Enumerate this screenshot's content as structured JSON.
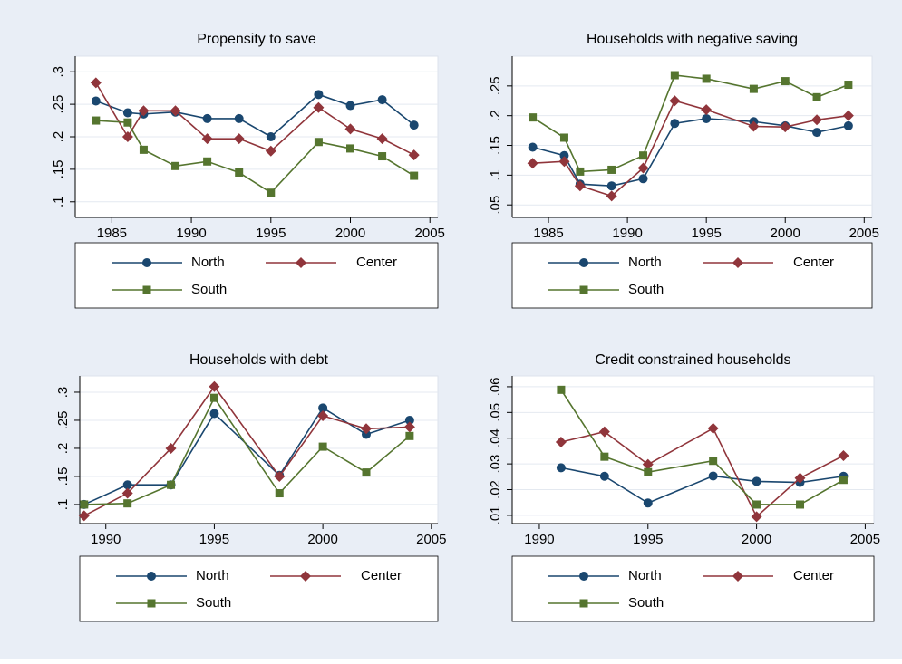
{
  "chart_data": [
    {
      "type": "line",
      "title": "Propensity to save",
      "x": [
        1984,
        1986,
        1987,
        1989,
        1991,
        1993,
        1995,
        1998,
        2000,
        2002,
        2004
      ],
      "xlim": [
        1982.7,
        2005.5
      ],
      "xticks": [
        1985,
        1990,
        1995,
        2000,
        2005
      ],
      "ylim": [
        0.076,
        0.324
      ],
      "yticks": [
        {
          "value": 0.1,
          "label": ".1"
        },
        {
          "value": 0.15,
          "label": ".15"
        },
        {
          "value": 0.2,
          "label": ".2"
        },
        {
          "value": 0.25,
          "label": ".25"
        },
        {
          "value": 0.3,
          "label": ".3"
        }
      ],
      "grid": true,
      "series": [
        {
          "name": "North",
          "color": "#1a476f",
          "marker": "circle",
          "values": [
            0.255,
            0.237,
            0.235,
            0.238,
            0.228,
            0.228,
            0.2,
            0.265,
            0.248,
            0.257,
            0.218
          ]
        },
        {
          "name": "Center",
          "color": "#90353b",
          "marker": "diamond",
          "values": [
            0.283,
            0.2,
            0.24,
            0.24,
            0.197,
            0.197,
            0.178,
            0.245,
            0.212,
            0.197,
            0.172
          ]
        },
        {
          "name": "South",
          "color": "#55752f",
          "marker": "square",
          "values": [
            0.225,
            0.222,
            0.18,
            0.155,
            0.162,
            0.145,
            0.114,
            0.192,
            0.182,
            0.17,
            0.14
          ]
        }
      ]
    },
    {
      "type": "line",
      "title": "Households with negative saving",
      "x": [
        1984,
        1986,
        1987,
        1989,
        1991,
        1993,
        1995,
        1998,
        2000,
        2002,
        2004
      ],
      "xlim": [
        1982.7,
        2005.5
      ],
      "xticks": [
        1985,
        1990,
        1995,
        2000,
        2005
      ],
      "ylim": [
        0.029,
        0.3
      ],
      "yticks": [
        {
          "value": 0.05,
          "label": ".05"
        },
        {
          "value": 0.1,
          "label": ".1"
        },
        {
          "value": 0.15,
          "label": ".15"
        },
        {
          "value": 0.2,
          "label": ".2"
        },
        {
          "value": 0.25,
          "label": ".25"
        }
      ],
      "grid": true,
      "series": [
        {
          "name": "North",
          "color": "#1a476f",
          "marker": "circle",
          "values": [
            0.147,
            0.133,
            0.085,
            0.082,
            0.094,
            0.187,
            0.195,
            0.19,
            0.183,
            0.172,
            0.183
          ]
        },
        {
          "name": "Center",
          "color": "#90353b",
          "marker": "diamond",
          "values": [
            0.12,
            0.123,
            0.082,
            0.065,
            0.112,
            0.225,
            0.21,
            0.182,
            0.181,
            0.193,
            0.2
          ]
        },
        {
          "name": "South",
          "color": "#55752f",
          "marker": "square",
          "values": [
            0.197,
            0.163,
            0.106,
            0.109,
            0.133,
            0.268,
            0.262,
            0.245,
            0.258,
            0.231,
            0.252
          ]
        }
      ]
    },
    {
      "type": "line",
      "title": "Households with debt",
      "x": [
        1989,
        1991,
        1993,
        1995,
        1998,
        2000,
        2002,
        2004
      ],
      "xlim": [
        1988.8,
        2005.3
      ],
      "xticks": [
        1990,
        1995,
        2000,
        2005
      ],
      "ylim": [
        0.066,
        0.329
      ],
      "yticks": [
        {
          "value": 0.1,
          "label": ".1"
        },
        {
          "value": 0.15,
          "label": ".15"
        },
        {
          "value": 0.2,
          "label": ".2"
        },
        {
          "value": 0.25,
          "label": ".25"
        },
        {
          "value": 0.3,
          "label": ".3"
        }
      ],
      "grid": true,
      "series": [
        {
          "name": "North",
          "color": "#1a476f",
          "marker": "circle",
          "values": [
            0.1,
            0.135,
            0.135,
            0.262,
            0.152,
            0.272,
            0.225,
            0.25
          ]
        },
        {
          "name": "Center",
          "color": "#90353b",
          "marker": "diamond",
          "values": [
            0.08,
            0.12,
            0.2,
            0.31,
            0.15,
            0.258,
            0.235,
            0.238
          ]
        },
        {
          "name": "South",
          "color": "#55752f",
          "marker": "square",
          "values": [
            0.1,
            0.102,
            0.135,
            0.29,
            0.12,
            0.203,
            0.157,
            0.222
          ]
        }
      ]
    },
    {
      "type": "line",
      "title": "Credit constrained households",
      "x": [
        1991,
        1993,
        1995,
        1998,
        2000,
        2002,
        2004
      ],
      "xlim": [
        1988.75,
        2005.4
      ],
      "xticks": [
        1990,
        1995,
        2000,
        2005
      ],
      "ylim": [
        0.0068,
        0.0642
      ],
      "yticks": [
        {
          "value": 0.01,
          "label": ".01"
        },
        {
          "value": 0.02,
          "label": ".02"
        },
        {
          "value": 0.03,
          "label": ".03"
        },
        {
          "value": 0.04,
          "label": ".04"
        },
        {
          "value": 0.05,
          "label": ".05"
        },
        {
          "value": 0.06,
          "label": ".06"
        }
      ],
      "grid": true,
      "series": [
        {
          "name": "North",
          "color": "#1a476f",
          "marker": "circle",
          "values": [
            0.0285,
            0.0252,
            0.0148,
            0.0253,
            0.0232,
            0.0228,
            0.0252
          ]
        },
        {
          "name": "Center",
          "color": "#90353b",
          "marker": "diamond",
          "values": [
            0.0385,
            0.0425,
            0.0298,
            0.0438,
            0.0095,
            0.0245,
            0.0332
          ]
        },
        {
          "name": "South",
          "color": "#55752f",
          "marker": "square",
          "values": [
            0.0588,
            0.0328,
            0.0268,
            0.0312,
            0.0142,
            0.0142,
            0.0238
          ]
        }
      ]
    }
  ]
}
